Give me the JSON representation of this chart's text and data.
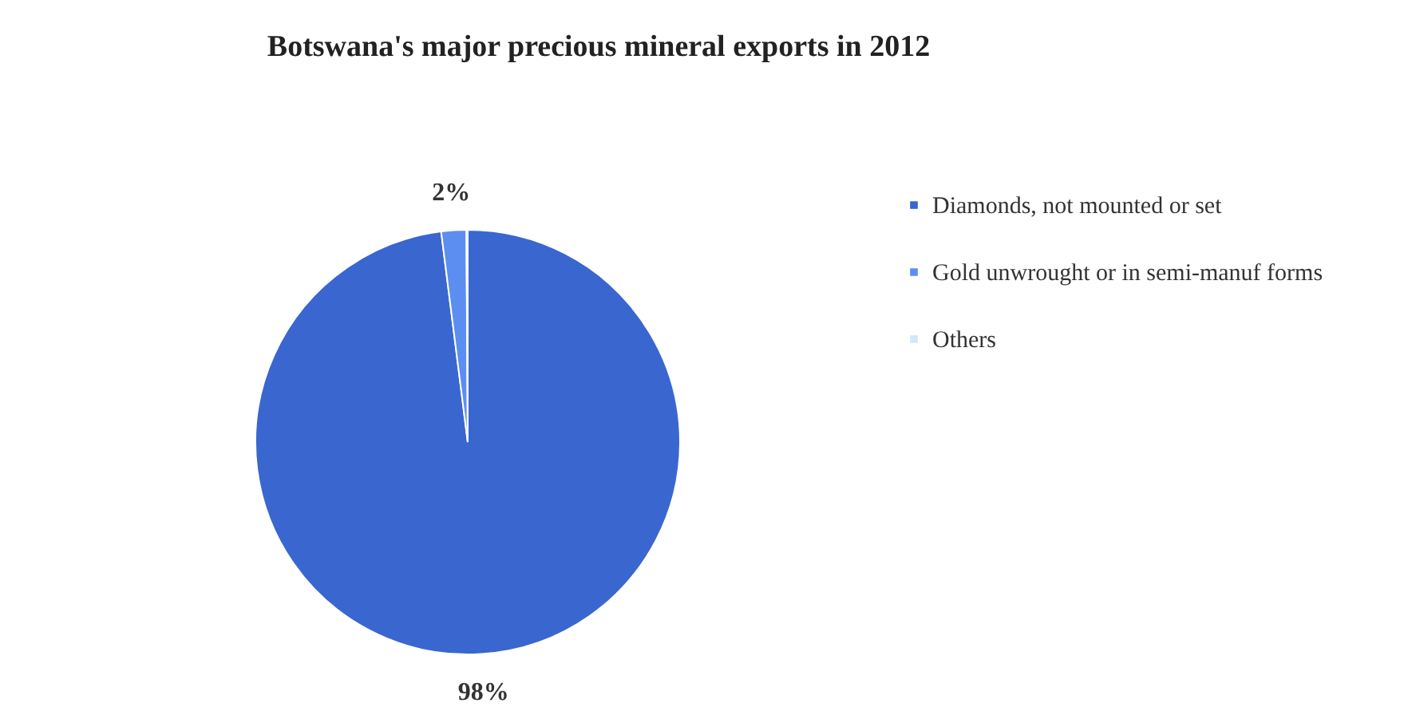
{
  "chart_data": {
    "type": "pie",
    "title": "Botswana's major precious mineral exports in 2012",
    "categories": [
      "Diamonds, not mounted or set",
      "Gold unwrought or in semi-manuf forms",
      "Others"
    ],
    "values": [
      98,
      1.9,
      0.1
    ],
    "colors": [
      "#3a66d0",
      "#5b8ef0",
      "#d6e6fb"
    ],
    "value_labels": [
      "98%",
      "2%",
      null
    ],
    "legend": "right"
  }
}
